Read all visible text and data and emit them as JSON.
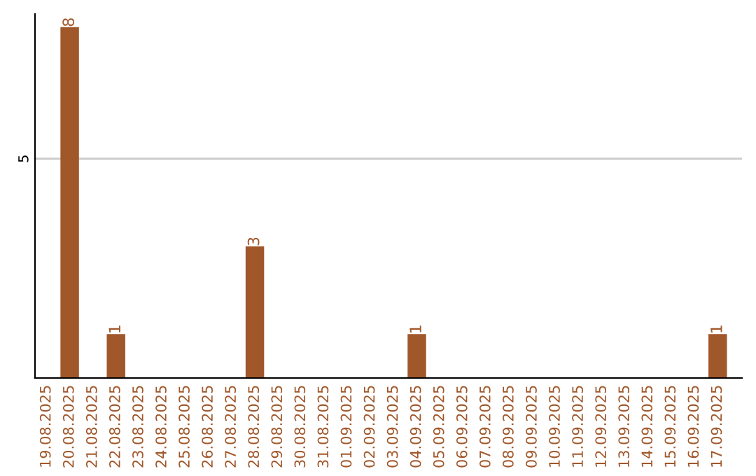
{
  "chart_data": {
    "type": "bar",
    "categories": [
      "19.08.2025",
      "20.08.2025",
      "21.08.2025",
      "22.08.2025",
      "23.08.2025",
      "24.08.2025",
      "25.08.2025",
      "26.08.2025",
      "27.08.2025",
      "28.08.2025",
      "29.08.2025",
      "30.08.2025",
      "31.08.2025",
      "01.09.2025",
      "02.09.2025",
      "03.09.2025",
      "04.09.2025",
      "05.09.2025",
      "06.09.2025",
      "07.09.2025",
      "08.09.2025",
      "09.09.2025",
      "10.09.2025",
      "11.09.2025",
      "12.09.2025",
      "13.09.2025",
      "14.09.2025",
      "15.09.2025",
      "16.09.2025",
      "17.09.2025"
    ],
    "values": [
      0,
      8,
      0,
      1,
      0,
      0,
      0,
      0,
      0,
      3,
      0,
      0,
      0,
      0,
      0,
      0,
      1,
      0,
      0,
      0,
      0,
      0,
      0,
      0,
      0,
      0,
      0,
      0,
      0,
      1
    ],
    "value_labels": [
      null,
      "8",
      null,
      "1",
      null,
      null,
      null,
      null,
      null,
      "3",
      null,
      null,
      null,
      null,
      null,
      null,
      "1",
      null,
      null,
      null,
      null,
      null,
      null,
      null,
      null,
      null,
      null,
      null,
      null,
      "1"
    ],
    "color": "#a0572a",
    "ylim": [
      0,
      8.3
    ],
    "yticks": [
      5
    ],
    "grid": "y"
  }
}
